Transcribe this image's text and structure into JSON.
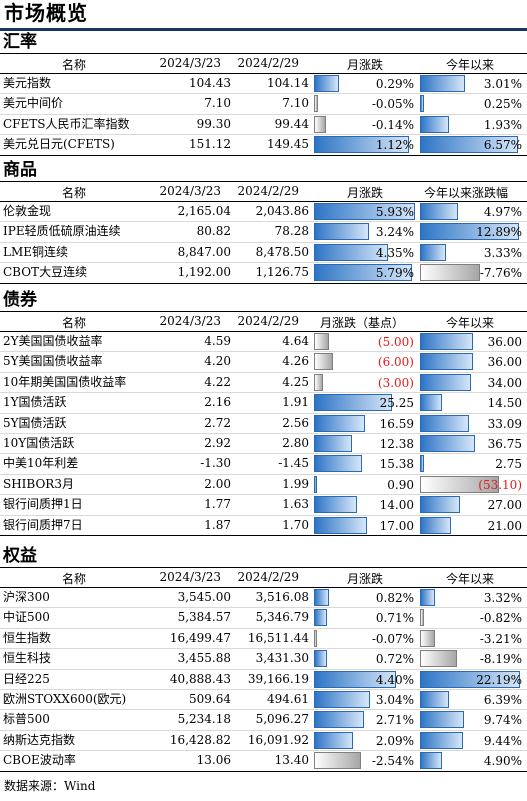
{
  "title": "市场概览",
  "source": "数据来源：Wind",
  "colors": {
    "bar_positive": "#2e75c6",
    "bar_negative": "#a6a6a6",
    "negative_text": "#e41a1a",
    "rule": "#17375e"
  },
  "sections": [
    {
      "id": "fx",
      "title": "汇率",
      "headers": [
        "名称",
        "2024/3/23",
        "2024/2/29",
        "月涨跌",
        "今年以来"
      ],
      "scale1": 1.2,
      "scale2": 7,
      "rows": [
        {
          "name": "美元指数",
          "v1": "104.43",
          "v2": "104.14",
          "c1": 0.29,
          "c1t": "0.29%",
          "c2": 3.01,
          "c2t": "3.01%"
        },
        {
          "name": "美元中间价",
          "v1": "7.10",
          "v2": "7.10",
          "c1": -0.05,
          "c1t": "-0.05%",
          "c2": 0.25,
          "c2t": "0.25%"
        },
        {
          "name": "CFETS人民币汇率指数",
          "v1": "99.30",
          "v2": "99.44",
          "c1": -0.14,
          "c1t": "-0.14%",
          "c2": 1.93,
          "c2t": "1.93%"
        },
        {
          "name": "美元兑日元(CFETS)",
          "v1": "151.12",
          "v2": "149.45",
          "c1": 1.12,
          "c1t": "1.12%",
          "c2": 6.57,
          "c2t": "6.57%"
        }
      ]
    },
    {
      "id": "commodities",
      "title": "商品",
      "headers": [
        "名称",
        "2024/3/23",
        "2024/2/29",
        "月涨跌",
        "今年以来涨跌幅"
      ],
      "scale1": 6,
      "scale2": 13.5,
      "rows": [
        {
          "name": "伦敦金现",
          "v1": "2,165.04",
          "v2": "2,043.86",
          "c1": 5.93,
          "c1t": "5.93%",
          "c2": 4.97,
          "c2t": "4.97%"
        },
        {
          "name": "IPE轻质低硫原油连续",
          "v1": "80.82",
          "v2": "78.28",
          "c1": 3.24,
          "c1t": "3.24%",
          "c2": 12.89,
          "c2t": "12.89%"
        },
        {
          "name": "LME铜连续",
          "v1": "8,847.00",
          "v2": "8,478.50",
          "c1": 4.35,
          "c1t": "4.35%",
          "c2": 3.33,
          "c2t": "3.33%"
        },
        {
          "name": "CBOT大豆连续",
          "v1": "1,192.00",
          "v2": "1,126.75",
          "c1": 5.79,
          "c1t": "5.79%",
          "c2": -7.76,
          "c2t": "-7.76%"
        }
      ]
    },
    {
      "id": "bonds",
      "title": "债券",
      "headers": [
        "名称",
        "2024/3/23",
        "2024/2/29",
        "月涨跌（基点）",
        "今年以来"
      ],
      "scale1": 33,
      "scale2": 70,
      "rows": [
        {
          "name": "2Y美国国债收益率",
          "v1": "4.59",
          "v2": "4.64",
          "c1": -5.0,
          "c1t": "(5.00)",
          "c2": 36.0,
          "c2t": "36.00"
        },
        {
          "name": "5Y美国国债收益率",
          "v1": "4.20",
          "v2": "4.26",
          "c1": -6.0,
          "c1t": "(6.00)",
          "c2": 36.0,
          "c2t": "36.00"
        },
        {
          "name": "10年期美国国债收益率",
          "v1": "4.22",
          "v2": "4.25",
          "c1": -3.0,
          "c1t": "(3.00)",
          "c2": 34.0,
          "c2t": "34.00"
        },
        {
          "name": "1Y国债活跃",
          "v1": "2.16",
          "v2": "1.91",
          "c1": 25.25,
          "c1t": "25.25",
          "c2": 14.5,
          "c2t": "14.50"
        },
        {
          "name": "5Y国债活跃",
          "v1": "2.72",
          "v2": "2.56",
          "c1": 16.59,
          "c1t": "16.59",
          "c2": 33.09,
          "c2t": "33.09"
        },
        {
          "name": "10Y国债活跃",
          "v1": "2.92",
          "v2": "2.80",
          "c1": 12.38,
          "c1t": "12.38",
          "c2": 36.75,
          "c2t": "36.75"
        },
        {
          "name": "中美10年利差",
          "v1": "-1.30",
          "v2": "-1.45",
          "c1": 15.38,
          "c1t": "15.38",
          "c2": 2.75,
          "c2t": "2.75"
        },
        {
          "name": "SHIBOR3月",
          "v1": "2.00",
          "v2": "1.99",
          "c1": 0.9,
          "c1t": "0.90",
          "c2": -53.1,
          "c2t": "(53.10)"
        },
        {
          "name": "银行间质押1日",
          "v1": "1.77",
          "v2": "1.63",
          "c1": 14.0,
          "c1t": "14.00",
          "c2": 27.0,
          "c2t": "27.00"
        },
        {
          "name": "银行间质押7日",
          "v1": "1.87",
          "v2": "1.70",
          "c1": 17.0,
          "c1t": "17.00",
          "c2": 21.0,
          "c2t": "21.00"
        }
      ]
    },
    {
      "id": "equity",
      "title": "权益",
      "headers": [
        "名称",
        "2024/3/23",
        "2024/2/29",
        "月涨跌",
        "今年以来"
      ],
      "scale1": 5.5,
      "scale2": 23,
      "rows": [
        {
          "name": "沪深300",
          "v1": "3,545.00",
          "v2": "3,516.08",
          "c1": 0.82,
          "c1t": "0.82%",
          "c2": 3.32,
          "c2t": "3.32%"
        },
        {
          "name": "中证500",
          "v1": "5,384.57",
          "v2": "5,346.79",
          "c1": 0.71,
          "c1t": "0.71%",
          "c2": -0.82,
          "c2t": "-0.82%"
        },
        {
          "name": "恒生指数",
          "v1": "16,499.47",
          "v2": "16,511.44",
          "c1": -0.07,
          "c1t": "-0.07%",
          "c2": -3.21,
          "c2t": "-3.21%"
        },
        {
          "name": "恒生科技",
          "v1": "3,455.88",
          "v2": "3,431.30",
          "c1": 0.72,
          "c1t": "0.72%",
          "c2": -8.19,
          "c2t": "-8.19%"
        },
        {
          "name": "日经225",
          "v1": "40,888.43",
          "v2": "39,166.19",
          "c1": 4.4,
          "c1t": "4.40%",
          "c2": 22.19,
          "c2t": "22.19%"
        },
        {
          "name": "欧洲STOXX600(欧元)",
          "v1": "509.64",
          "v2": "494.61",
          "c1": 3.04,
          "c1t": "3.04%",
          "c2": 6.39,
          "c2t": "6.39%"
        },
        {
          "name": "标普500",
          "v1": "5,234.18",
          "v2": "5,096.27",
          "c1": 2.71,
          "c1t": "2.71%",
          "c2": 9.74,
          "c2t": "9.74%"
        },
        {
          "name": "纳斯达克指数",
          "v1": "16,428.82",
          "v2": "16,091.92",
          "c1": 2.09,
          "c1t": "2.09%",
          "c2": 9.44,
          "c2t": "9.44%"
        },
        {
          "name": "CBOE波动率",
          "v1": "13.06",
          "v2": "13.40",
          "c1": -2.54,
          "c1t": "-2.54%",
          "c2": 4.9,
          "c2t": "4.90%"
        }
      ]
    }
  ]
}
